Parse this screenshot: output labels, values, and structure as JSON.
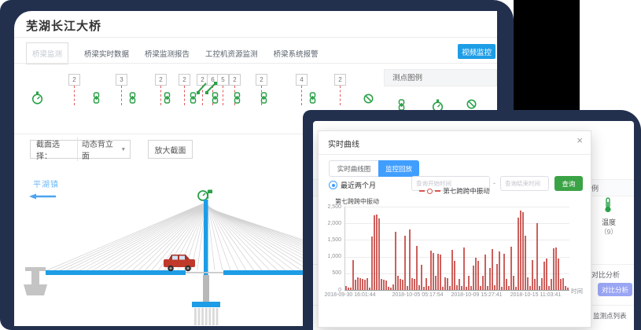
{
  "colors": {
    "navy": "#22304e",
    "accent_blue": "#1e9de6",
    "element_blue": "#409EFF",
    "green": "#2aa148",
    "button_green": "#3aa346",
    "indigo_button": "#9aa5f4",
    "bar_red": "#c23d38",
    "legend_red": "#d9534f"
  },
  "window1": {
    "title": "芜湖长江大桥",
    "tabs": [
      {
        "label": "桥梁监测",
        "active": true
      },
      {
        "label": "桥梁实时数据",
        "active": false
      },
      {
        "label": "桥梁监测报告",
        "active": false
      },
      {
        "label": "工控机资源监测",
        "active": false
      },
      {
        "label": "桥梁系统报警",
        "active": false
      }
    ],
    "video_button": "视频监控",
    "legend_panel_title": "测点图例",
    "section_select": {
      "label": "截面选择：",
      "value": "动态背立面",
      "caret": "▼",
      "zoom_button": "放大截面"
    },
    "bridge_place": "平湖镇",
    "sensors": [
      {
        "t": "gauge",
        "x": 40
      },
      {
        "t": "mark",
        "x": 87,
        "v": "2"
      },
      {
        "t": "chain",
        "x": 117
      },
      {
        "t": "mark",
        "x": 147,
        "v": "3"
      },
      {
        "t": "chain",
        "x": 163
      },
      {
        "t": "mark",
        "x": 197,
        "v": "2"
      },
      {
        "t": "chain",
        "x": 207
      },
      {
        "t": "mark",
        "x": 227,
        "v": "2"
      },
      {
        "t": "chain",
        "x": 240
      },
      {
        "t": "mark",
        "x": 250,
        "v": "2"
      },
      {
        "t": "mark",
        "x": 263,
        "v": "6"
      },
      {
        "t": "brace",
        "x": 250
      },
      {
        "t": "chain",
        "x": 268
      },
      {
        "t": "mark",
        "x": 276,
        "v": "5"
      },
      {
        "t": "mark",
        "x": 291,
        "v": "2"
      },
      {
        "t": "chain",
        "x": 296
      },
      {
        "t": "mark",
        "x": 325,
        "v": "2"
      },
      {
        "t": "chain",
        "x": 330
      },
      {
        "t": "mark",
        "x": 376,
        "v": "4"
      },
      {
        "t": "chain",
        "x": 392
      },
      {
        "t": "mark",
        "x": 425,
        "v": "2"
      },
      {
        "t": "ban",
        "x": 462
      }
    ]
  },
  "window2": {
    "sidebar": {
      "partial_header": "例",
      "temp_label": "温度",
      "temp_count": "（9）",
      "analysis_header": "对比分析",
      "analysis_button": "对比分析",
      "list_header": "监测点列表"
    },
    "modal": {
      "title": "实时曲线",
      "close_icon": "×",
      "tabs": [
        {
          "label": "实时曲线图",
          "active": false
        },
        {
          "label": "监控回放",
          "active": true
        }
      ],
      "range_option": "最近两个月",
      "start_placeholder": "查询开始时间",
      "separator": "-",
      "end_placeholder": "查询结束时间",
      "query_button": "查询"
    }
  },
  "chart_data": {
    "type": "bar",
    "title": "第七跨跨中振动",
    "legend": [
      "第七跨跨中振动"
    ],
    "xlabel": "时间",
    "ylabel": "",
    "ylim": [
      0,
      2500
    ],
    "yticks": [
      2500,
      2000,
      1500,
      1000,
      500,
      0
    ],
    "xticks": [
      "2018-09-30 16:01:44",
      "2018-10-05 05:17:54",
      "2018-10-09 15:27:41",
      "2018-10-15 11:03:41"
    ],
    "grid": true,
    "legend_position": "top",
    "series": [
      {
        "name": "第七跨跨中振动",
        "color": "#c23d38",
        "values": [
          120,
          60,
          80,
          900,
          300,
          380,
          350,
          320,
          300,
          350,
          60,
          1600,
          2230,
          2260,
          2150,
          330,
          300,
          280,
          90,
          60,
          160,
          1750,
          420,
          330,
          300,
          1620,
          120,
          1810,
          350,
          330,
          1320,
          150,
          760,
          90,
          350,
          130,
          1170,
          1100,
          420,
          1090,
          1060,
          90,
          380,
          350,
          120,
          1210,
          870,
          140,
          330,
          120,
          1270,
          90,
          420,
          130,
          720,
          960,
          870,
          130,
          420,
          1060,
          130,
          650,
          1230,
          140,
          780,
          1160,
          90,
          1080,
          330,
          130,
          1290,
          420,
          90,
          2160,
          2380,
          2340,
          1630,
          380,
          130,
          900,
          330,
          2010,
          120,
          350,
          860,
          950,
          130,
          330,
          1260,
          1280,
          950,
          330,
          350,
          120,
          60
        ]
      }
    ]
  }
}
